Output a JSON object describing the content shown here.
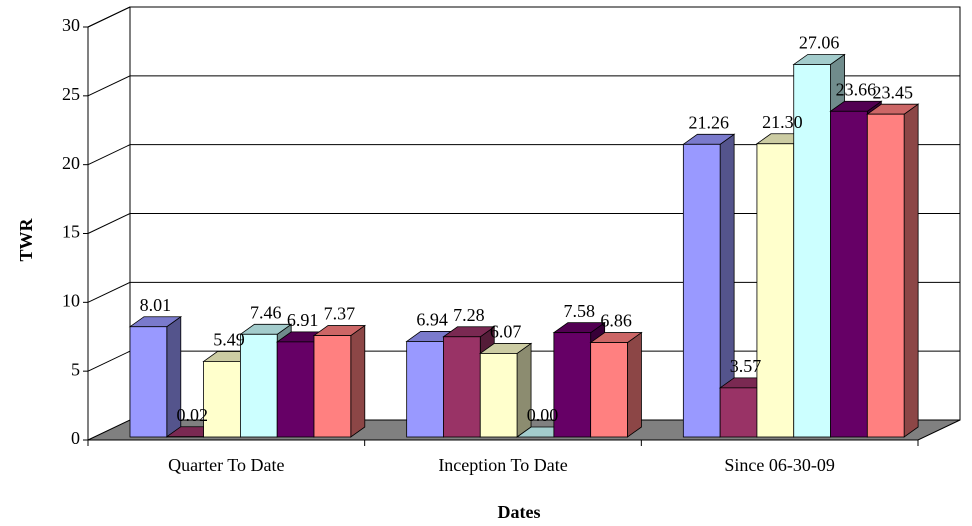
{
  "chart_data": {
    "type": "bar3d",
    "x_label": "Dates",
    "y_label": "TWR",
    "categories": [
      "Quarter To Date",
      "Inception To Date",
      "Since 06-30-09"
    ],
    "series": [
      {
        "color": "#9999ff",
        "values": [
          8.01,
          6.94,
          21.26
        ],
        "value_labels": [
          "8.01",
          "6.94",
          "21.26"
        ]
      },
      {
        "color": "#993366",
        "values": [
          0.02,
          7.28,
          3.57
        ],
        "value_labels": [
          "0.02",
          "7.28",
          "3.57"
        ]
      },
      {
        "color": "#ffffcc",
        "values": [
          5.49,
          6.07,
          21.3
        ],
        "value_labels": [
          "5.49",
          "6.07",
          "21.30"
        ]
      },
      {
        "color": "#ccffff",
        "values": [
          7.46,
          0,
          27.06
        ],
        "value_labels": [
          "7.46",
          "0.00",
          "27.06"
        ]
      },
      {
        "color": "#660066",
        "values": [
          6.91,
          7.58,
          23.66
        ],
        "value_labels": [
          "6.91",
          "7.58",
          "23.66"
        ]
      },
      {
        "color": "#ff8080",
        "values": [
          7.37,
          6.86,
          23.45
        ],
        "value_labels": [
          "7.37",
          "6.86",
          "23.45"
        ]
      }
    ],
    "ylim": [
      0,
      30
    ],
    "yticks": [
      0,
      5,
      10,
      15,
      20,
      25,
      30
    ],
    "grid": true
  }
}
